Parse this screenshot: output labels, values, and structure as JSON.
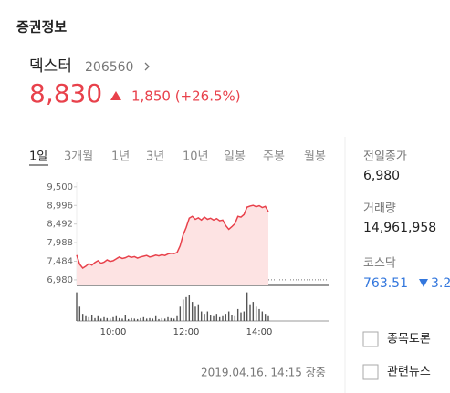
{
  "header": {
    "title": "증권정보"
  },
  "stock": {
    "name": "덱스터",
    "code": "206560",
    "price": "8,830",
    "change": "1,850 (+26.5%)"
  },
  "tabs": [
    "1일",
    "3개월",
    "1년",
    "3년",
    "10년",
    "일봉",
    "주봉",
    "월봉"
  ],
  "stats": [
    {
      "label": "전일종가",
      "value": "6,980"
    },
    {
      "label": "거래량",
      "value": "14,961,958"
    },
    {
      "label": "코스닥",
      "value": "763.51",
      "change": "3.2"
    }
  ],
  "links": [
    "종목토론",
    "관련뉴스"
  ],
  "timestamp": "2019.04.16. 14:15 장중",
  "chart_data": {
    "type": "line",
    "categories": [
      null,
      null,
      null,
      null,
      null,
      null,
      null,
      null,
      null,
      null,
      null,
      null,
      "10:00",
      null,
      null,
      null,
      null,
      null,
      null,
      null,
      null,
      null,
      null,
      null,
      null,
      null,
      null,
      null,
      null,
      null,
      null,
      null,
      null,
      null,
      null,
      null,
      "12:00",
      null,
      null,
      null,
      null,
      null,
      null,
      null,
      null,
      null,
      null,
      null,
      null,
      null,
      null,
      null,
      null,
      null,
      null,
      null,
      null,
      null,
      null,
      null,
      "14:00",
      null,
      null,
      null,
      null,
      null,
      null,
      null,
      null,
      null,
      null,
      null,
      null,
      null,
      null,
      null,
      null,
      null,
      null
    ],
    "series": [
      {
        "color": "#e8414b",
        "fill": "#fde3e3",
        "values": [
          7650,
          7400,
          7300,
          7350,
          7420,
          7380,
          7450,
          7500,
          7430,
          7460,
          7520,
          7480,
          7500,
          7550,
          7600,
          7560,
          7580,
          7620,
          7590,
          7610,
          7570,
          7600,
          7620,
          7640,
          7600,
          7620,
          7650,
          7630,
          7660,
          7640,
          7680,
          7700,
          7690,
          7720,
          7900,
          8200,
          8400,
          8650,
          8700,
          8620,
          8660,
          8600,
          8680,
          8620,
          8650,
          8600,
          8640,
          8580,
          8600,
          8450,
          8350,
          8420,
          8500,
          8700,
          8680,
          8750,
          8950,
          8980,
          9000,
          8960,
          8990,
          8940,
          8970,
          8830,
          null,
          null,
          null,
          null,
          null,
          null,
          null,
          null,
          null,
          null,
          null,
          null,
          null,
          null,
          null
        ]
      },
      {
        "color": "#555555",
        "type": "bar",
        "axis": "y2",
        "values": [
          60,
          30,
          15,
          10,
          8,
          12,
          6,
          10,
          5,
          8,
          6,
          5,
          8,
          10,
          6,
          5,
          12,
          4,
          6,
          5,
          4,
          6,
          8,
          5,
          6,
          5,
          10,
          4,
          6,
          5,
          8,
          6,
          5,
          10,
          30,
          45,
          50,
          55,
          40,
          30,
          35,
          20,
          15,
          20,
          12,
          10,
          15,
          8,
          10,
          15,
          20,
          12,
          10,
          25,
          18,
          20,
          60,
          35,
          40,
          30,
          25,
          20,
          15,
          10,
          null,
          null,
          null,
          null,
          null,
          null,
          null,
          null,
          null,
          null,
          null,
          null,
          null,
          null,
          null
        ]
      }
    ],
    "ylim": [
      6830,
      9620
    ],
    "yticks": [
      {
        "value": 6980,
        "label": "6,980"
      },
      {
        "value": 7484,
        "label": "7,484"
      },
      {
        "value": 7988,
        "label": "7,988"
      },
      {
        "value": 8492,
        "label": "8,492"
      },
      {
        "value": 8996,
        "label": "8,996"
      },
      {
        "value": 9500,
        "label": "9,500"
      }
    ],
    "baseline": 6980,
    "y2lim": [
      0,
      65
    ]
  }
}
